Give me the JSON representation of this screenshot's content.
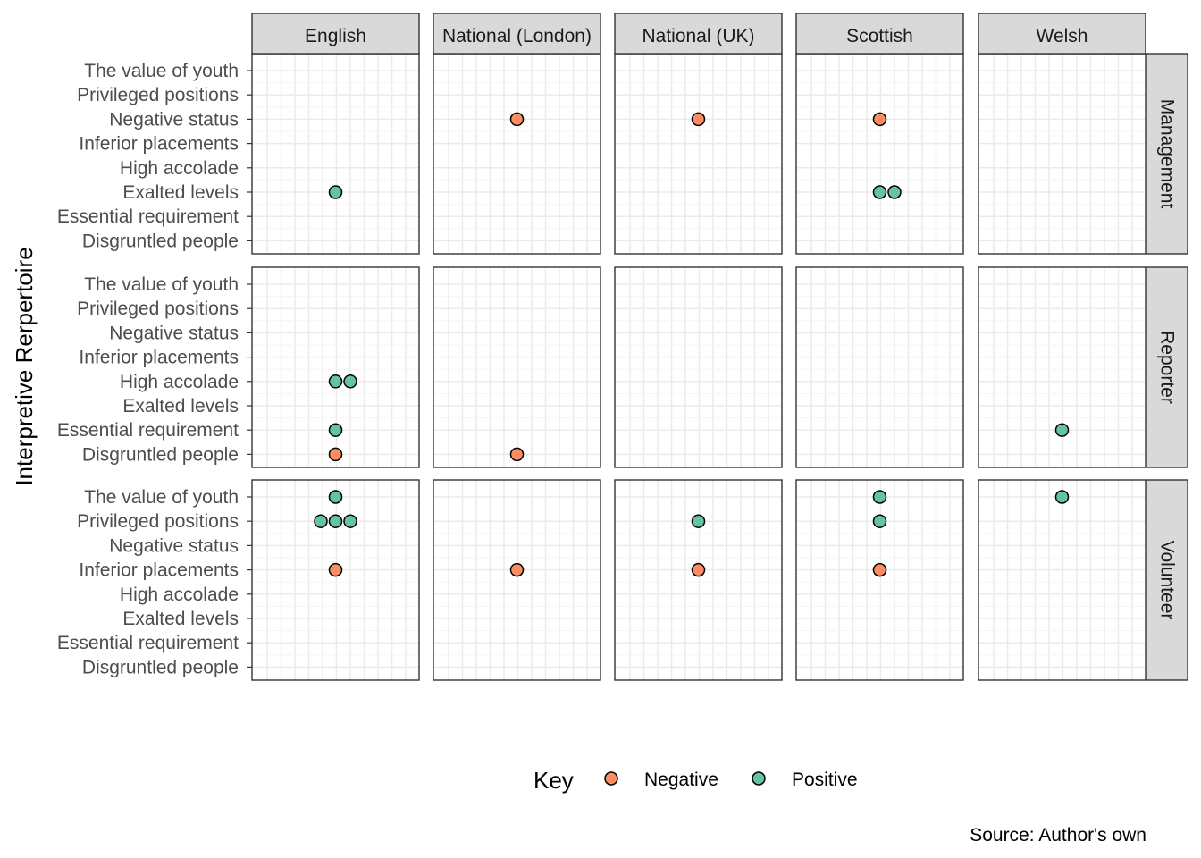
{
  "chart_data": {
    "type": "scatter",
    "y_axis_label": "Interpretive Rerpertoire",
    "col_facets": [
      "English",
      "National (London)",
      "National (UK)",
      "Scottish",
      "Welsh"
    ],
    "row_facets": [
      "Management",
      "Reporter",
      "Volunteer"
    ],
    "categories": [
      "The value of youth",
      "Privileged positions",
      "Negative status",
      "Inferior placements",
      "High accolade",
      "Exalted levels",
      "Essential requirement",
      "Disgruntled people"
    ],
    "legend": {
      "title": "Key",
      "entries": [
        {
          "label": "Negative",
          "color": "#fc8d62"
        },
        {
          "label": "Positive",
          "color": "#66c2a5"
        }
      ]
    },
    "caption": "Source: Author's own",
    "grid": true,
    "points": [
      {
        "row": "Management",
        "col": "English",
        "category": "Exalted levels",
        "key": "Positive",
        "count": 1
      },
      {
        "row": "Management",
        "col": "National (London)",
        "category": "Negative status",
        "key": "Negative",
        "count": 1
      },
      {
        "row": "Management",
        "col": "National (UK)",
        "category": "Negative status",
        "key": "Negative",
        "count": 1
      },
      {
        "row": "Management",
        "col": "Scottish",
        "category": "Negative status",
        "key": "Negative",
        "count": 1
      },
      {
        "row": "Management",
        "col": "Scottish",
        "category": "Exalted levels",
        "key": "Positive",
        "count": 2
      },
      {
        "row": "Reporter",
        "col": "English",
        "category": "High accolade",
        "key": "Positive",
        "count": 2
      },
      {
        "row": "Reporter",
        "col": "English",
        "category": "Essential requirement",
        "key": "Positive",
        "count": 1
      },
      {
        "row": "Reporter",
        "col": "English",
        "category": "Disgruntled people",
        "key": "Negative",
        "count": 1
      },
      {
        "row": "Reporter",
        "col": "National (London)",
        "category": "Disgruntled people",
        "key": "Negative",
        "count": 1
      },
      {
        "row": "Reporter",
        "col": "Welsh",
        "category": "Essential requirement",
        "key": "Positive",
        "count": 1
      },
      {
        "row": "Volunteer",
        "col": "English",
        "category": "The value of youth",
        "key": "Positive",
        "count": 1
      },
      {
        "row": "Volunteer",
        "col": "English",
        "category": "Privileged positions",
        "key": "Positive",
        "count": 3
      },
      {
        "row": "Volunteer",
        "col": "English",
        "category": "Inferior placements",
        "key": "Negative",
        "count": 1
      },
      {
        "row": "Volunteer",
        "col": "National (London)",
        "category": "Inferior placements",
        "key": "Negative",
        "count": 1
      },
      {
        "row": "Volunteer",
        "col": "National (UK)",
        "category": "Privileged positions",
        "key": "Positive",
        "count": 1
      },
      {
        "row": "Volunteer",
        "col": "National (UK)",
        "category": "Inferior placements",
        "key": "Negative",
        "count": 1
      },
      {
        "row": "Volunteer",
        "col": "Scottish",
        "category": "The value of youth",
        "key": "Positive",
        "count": 1
      },
      {
        "row": "Volunteer",
        "col": "Scottish",
        "category": "Privileged positions",
        "key": "Positive",
        "count": 1
      },
      {
        "row": "Volunteer",
        "col": "Scottish",
        "category": "Inferior placements",
        "key": "Negative",
        "count": 1
      },
      {
        "row": "Volunteer",
        "col": "Welsh",
        "category": "The value of youth",
        "key": "Positive",
        "count": 1
      }
    ]
  }
}
